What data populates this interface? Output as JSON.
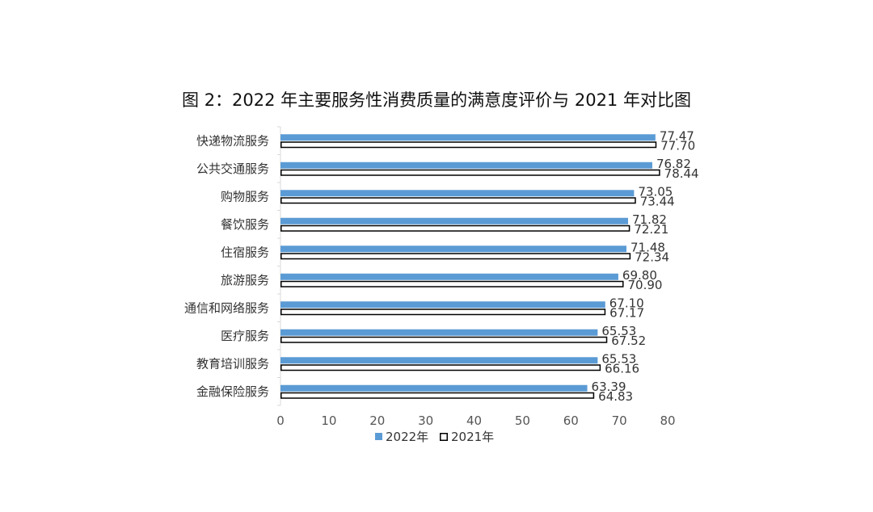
{
  "chart_data": {
    "type": "bar",
    "orientation": "horizontal",
    "title": "图 2：2022 年主要服务性消费质量的满意度评价与 2021 年对比图",
    "categories": [
      "快递物流服务",
      "公共交通服务",
      "购物服务",
      "餐饮服务",
      "住宿服务",
      "旅游服务",
      "通信和网络服务",
      "医疗服务",
      "教育培训服务",
      "金融保险服务"
    ],
    "series": [
      {
        "name": "2022年",
        "values": [
          77.47,
          76.82,
          73.05,
          71.82,
          71.48,
          69.8,
          67.1,
          65.53,
          65.53,
          63.39
        ],
        "labels": [
          "77.47",
          "76.82",
          "73.05",
          "71.82",
          "71.48",
          "69.80",
          "67.10",
          "65.53",
          "65.53",
          "63.39"
        ],
        "color": "#5b9bd5",
        "style": "filled"
      },
      {
        "name": "2021年",
        "values": [
          77.7,
          78.44,
          73.44,
          72.21,
          72.34,
          70.9,
          67.17,
          67.52,
          66.16,
          64.83
        ],
        "labels": [
          "77.70",
          "78.44",
          "73.44",
          "72.21",
          "72.34",
          "70.90",
          "67.17",
          "67.52",
          "66.16",
          "64.83"
        ],
        "color": "#000000",
        "style": "outline"
      }
    ],
    "xlim": [
      0,
      80
    ],
    "xticks": [
      "0",
      "10",
      "20",
      "30",
      "40",
      "50",
      "60",
      "70",
      "80"
    ],
    "xlabel": "",
    "ylabel": "",
    "grid": false,
    "legend": "bottom"
  }
}
